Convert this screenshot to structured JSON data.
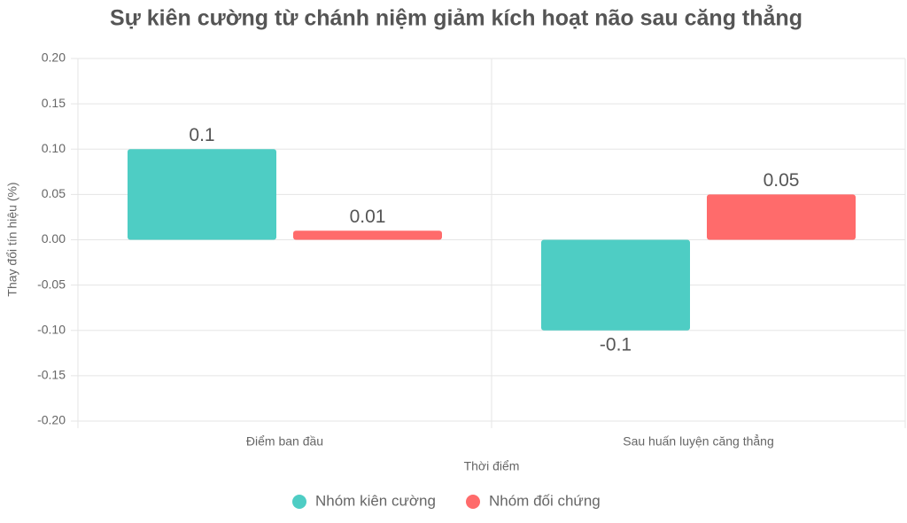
{
  "chart_data": {
    "type": "bar",
    "title": "Sự kiên cường từ chánh niệm giảm kích hoạt não sau căng thẳng",
    "x_label": "Thời điểm",
    "y_label": "Thay đổi tín hiệu (%)",
    "categories": [
      "Điểm ban đầu",
      "Sau huấn luyện căng thẳng"
    ],
    "series": [
      {
        "name": "Nhóm kiên cường",
        "color": "#4ecdc4",
        "values": [
          0.1,
          -0.1
        ]
      },
      {
        "name": "Nhóm đối chứng",
        "color": "#ff6b6b",
        "values": [
          0.01,
          0.05
        ]
      }
    ],
    "ylim": [
      -0.2,
      0.2
    ],
    "yticks": [
      {
        "value": -0.2,
        "label": "-0.20"
      },
      -0.15,
      {
        "value": -0.1,
        "label": "-0.10"
      },
      -0.05,
      {
        "value": 0,
        "label": "0.00"
      },
      0.05,
      {
        "value": 0.1,
        "label": "0.10"
      },
      0.15,
      {
        "value": 0.2,
        "label": "0.20"
      }
    ],
    "grid": true,
    "legend": "bottom"
  }
}
